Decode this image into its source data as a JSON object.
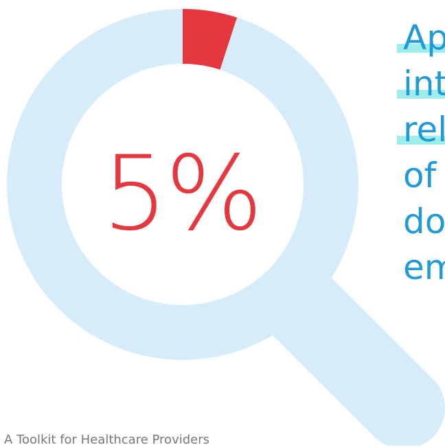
{
  "graphic": {
    "center_text": "5%",
    "percent_value": 0.05,
    "icon": "magnifying-glass-icon"
  },
  "side_text": {
    "lines": [
      {
        "text": "Ap",
        "highlighted": true
      },
      {
        "text": "int",
        "highlighted": true
      },
      {
        "text": "rel",
        "highlighted": true
      },
      {
        "text": "of",
        "highlighted": false
      },
      {
        "text": "do",
        "highlighted": false
      },
      {
        "text": "em",
        "highlighted": false
      }
    ]
  },
  "footer": {
    "text": "A Toolkit for Healthcare Providers"
  },
  "colors": {
    "ring": "#d6ecf9",
    "accent": "#e4373f",
    "text_blue": "#1f9ad6",
    "highlight": "#9eeceb",
    "footer_text": "#777777"
  }
}
